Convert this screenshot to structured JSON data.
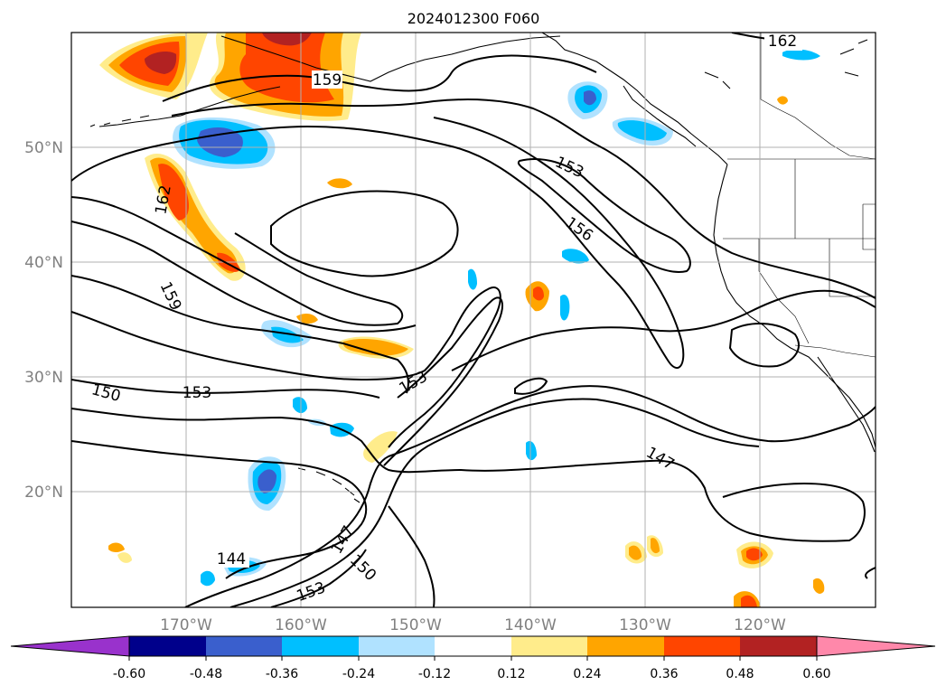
{
  "title": "2024012300 F060",
  "map": {
    "lon_labels": [
      "170°W",
      "160°W",
      "150°W",
      "140°W",
      "130°W",
      "120°W"
    ],
    "lat_labels": [
      "50°N",
      "40°N",
      "30°N",
      "20°N"
    ],
    "label_color": "#808080"
  },
  "contour_labels": [
    {
      "text": "162",
      "name": "contour-label-162-north"
    },
    {
      "text": "159",
      "name": "contour-label-159-north"
    },
    {
      "text": "162",
      "name": "contour-label-162-west"
    },
    {
      "text": "153",
      "name": "contour-label-153-north"
    },
    {
      "text": "156",
      "name": "contour-label-156"
    },
    {
      "text": "159",
      "name": "contour-label-159-west"
    },
    {
      "text": "153",
      "name": "contour-label-153-center"
    },
    {
      "text": "150",
      "name": "contour-label-150-west"
    },
    {
      "text": "153",
      "name": "contour-label-153-west"
    },
    {
      "text": "147",
      "name": "contour-label-147-east"
    },
    {
      "text": "147",
      "name": "contour-label-147-south"
    },
    {
      "text": "150",
      "name": "contour-label-150-south"
    },
    {
      "text": "144",
      "name": "contour-label-144"
    },
    {
      "text": "153",
      "name": "contour-label-153-south"
    }
  ],
  "colorbar": {
    "ticks": [
      "-0.60",
      "-0.48",
      "-0.36",
      "-0.24",
      "-0.12",
      "0.12",
      "0.24",
      "0.36",
      "0.48",
      "0.60"
    ],
    "colors": {
      "under": "#9932cc",
      "bins": [
        "#00008b",
        "#3a5fcd",
        "#00bfff",
        "#b0e2ff",
        "#ffffff",
        "#ffec8b",
        "#ffa500",
        "#ff4500",
        "#b22222"
      ],
      "over": "#ff88aa"
    }
  }
}
